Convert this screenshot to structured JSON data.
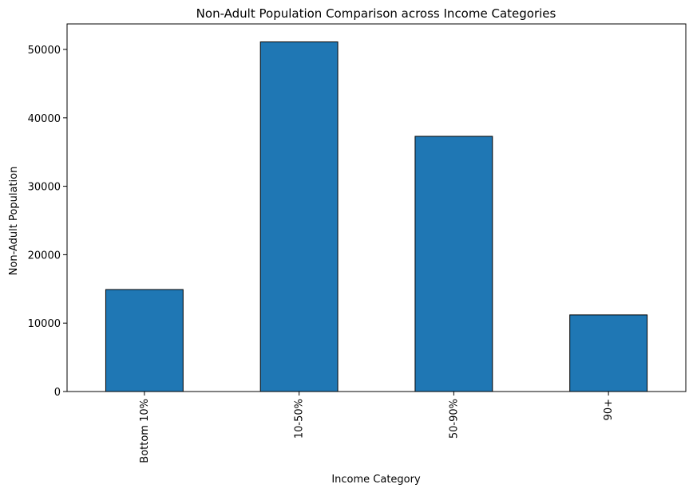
{
  "chart_data": {
    "type": "bar",
    "title": "Non-Adult Population Comparison across Income Categories",
    "xlabel": "Income Category",
    "ylabel": "Non-Adult Population",
    "categories": [
      "Bottom 10%",
      "10-50%",
      "50-90%",
      "90+"
    ],
    "values": [
      14900,
      51100,
      37300,
      11200
    ],
    "ylim": [
      0,
      53730
    ],
    "yticks": [
      0,
      10000,
      20000,
      30000,
      40000,
      50000
    ],
    "ytick_labels": [
      "0",
      "10000",
      "20000",
      "30000",
      "40000",
      "50000"
    ],
    "grid": false,
    "legend": "none",
    "colors": {
      "bar_fill": "#1f77b4",
      "bar_edge": "#000000",
      "axis": "#000000"
    }
  }
}
